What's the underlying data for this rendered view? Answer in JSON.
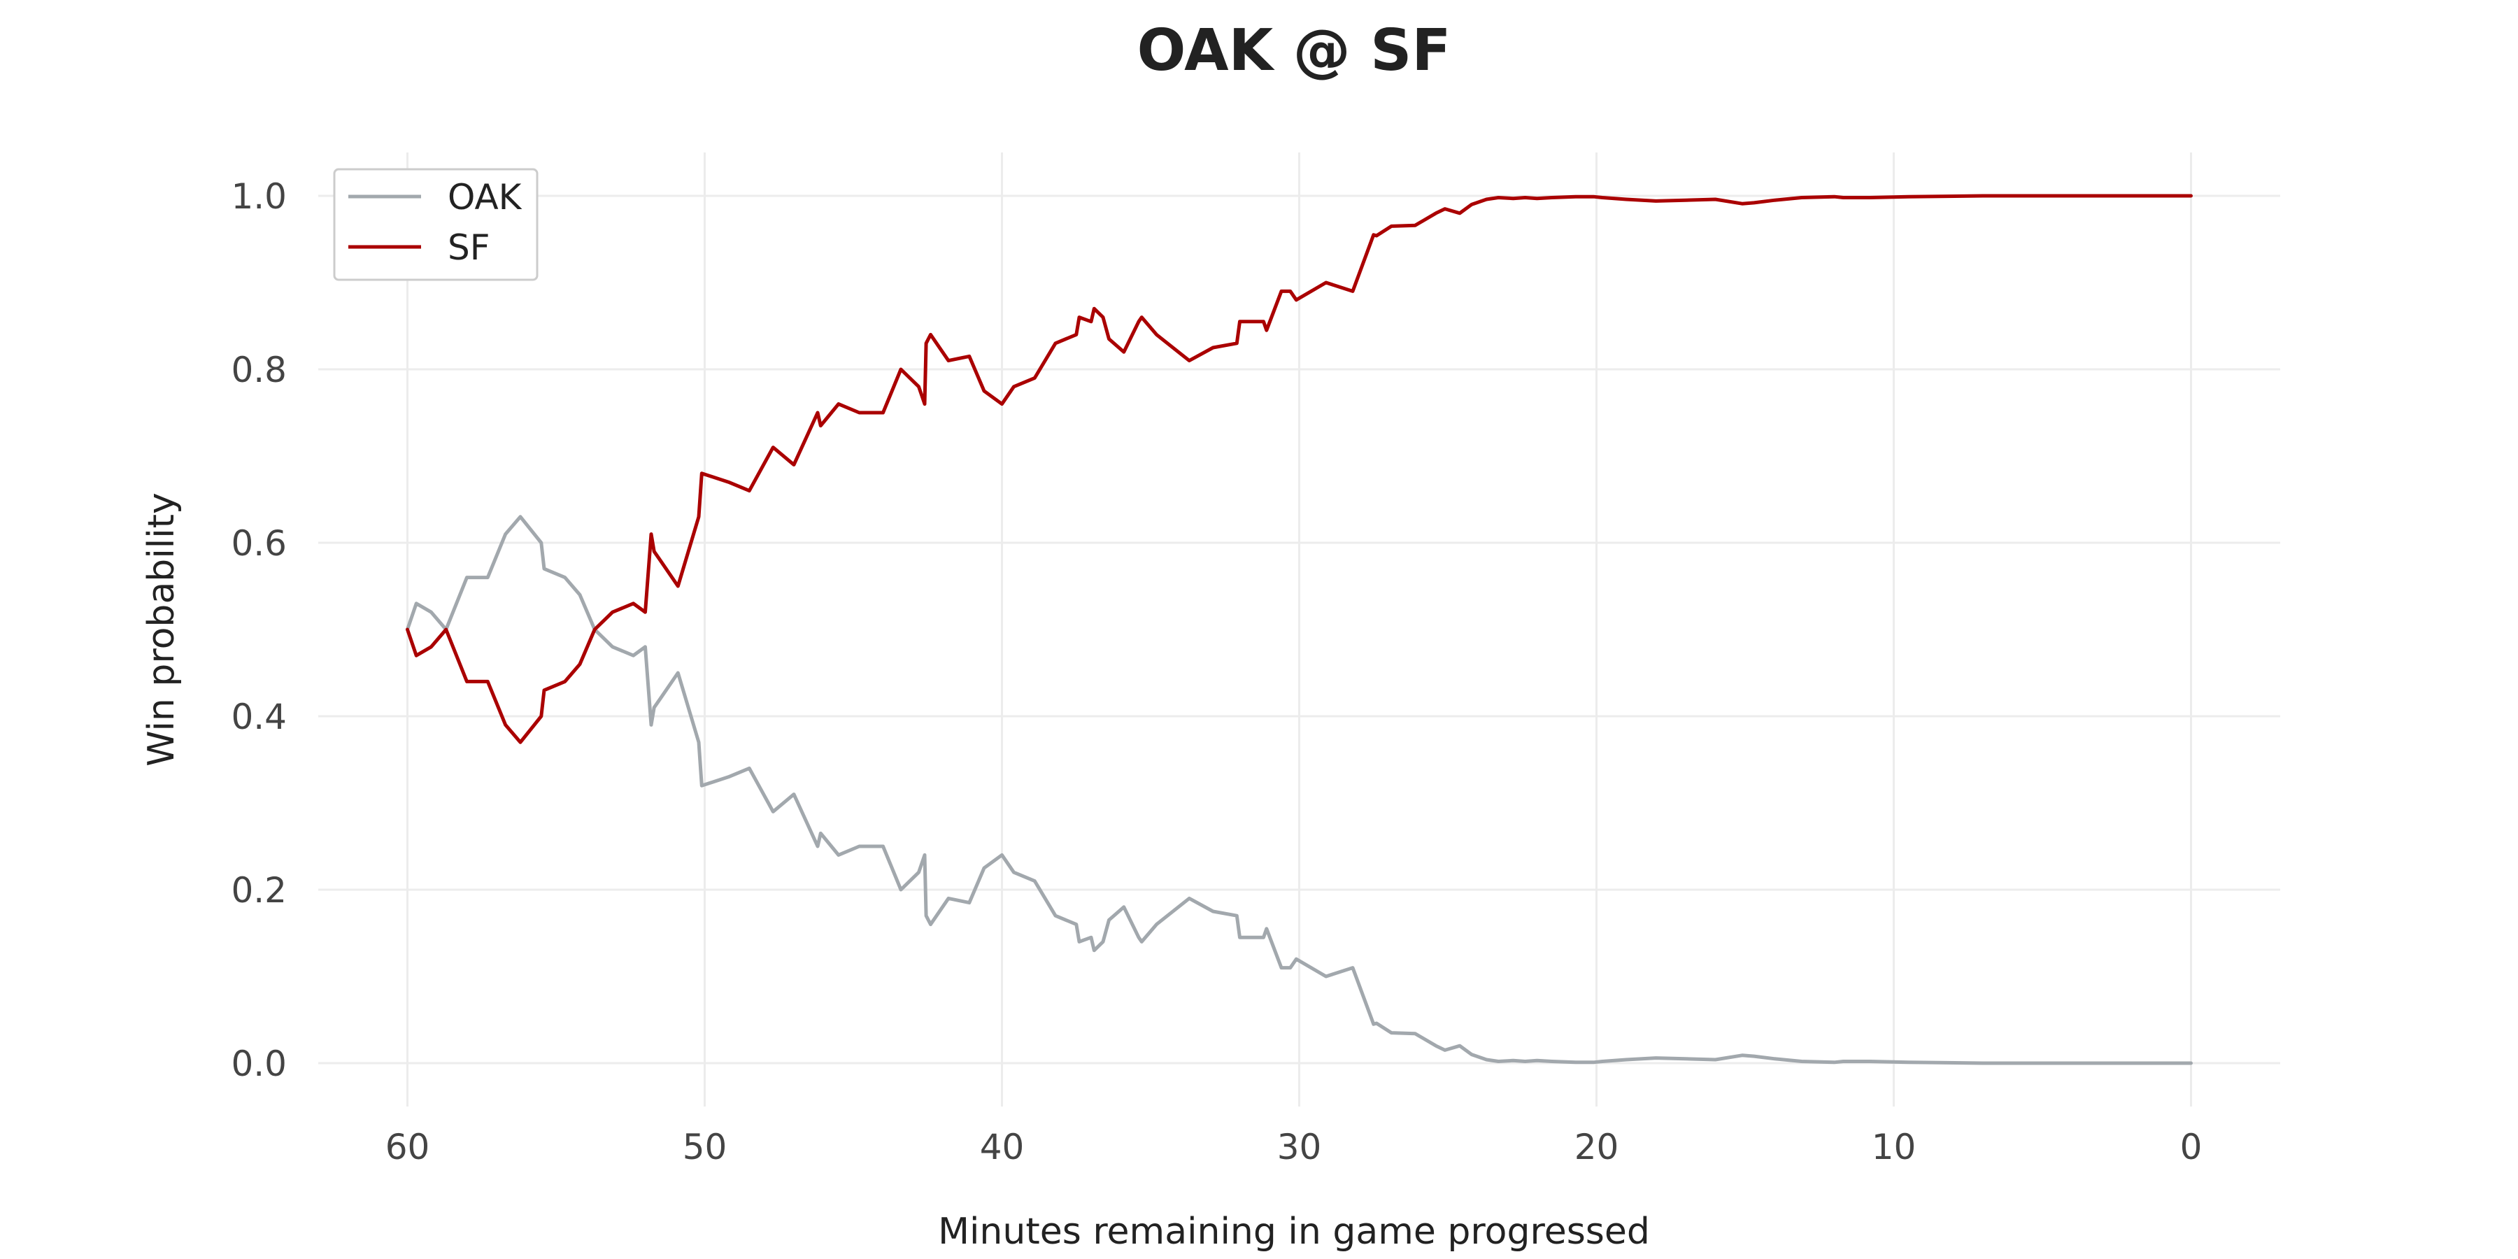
{
  "chart_data": {
    "type": "line",
    "title": "OAK @ SF",
    "xlabel": "Minutes remaining in game progressed",
    "ylabel": "Win probability",
    "xlim": [
      63,
      -3
    ],
    "ylim": [
      -0.05,
      1.05
    ],
    "x_axis_reversed": true,
    "xticks": [
      60,
      50,
      40,
      30,
      20,
      10,
      0
    ],
    "xtick_labels": [
      "60",
      "50",
      "40",
      "30",
      "20",
      "10",
      "0"
    ],
    "yticks": [
      0.0,
      0.2,
      0.4,
      0.6,
      0.8,
      1.0
    ],
    "ytick_labels": [
      "0.0",
      "0.2",
      "0.4",
      "0.6",
      "0.8",
      "1.0"
    ],
    "grid": true,
    "legend_position": "top-left",
    "colors": {
      "OAK": "#a2a8ad",
      "SF": "#aa0000"
    },
    "series": [
      {
        "name": "OAK",
        "x": [
          60,
          59.7,
          59.2,
          58.7,
          58.0,
          57.3,
          56.7,
          56.2,
          55.5,
          55.4,
          54.7,
          54.2,
          53.7,
          53.1,
          52.4,
          52.0,
          51.8,
          51.7,
          51.5,
          50.9,
          50.2,
          50.1,
          49.2,
          48.5,
          47.7,
          47.0,
          46.2,
          46.1,
          45.5,
          44.8,
          44.0,
          43.4,
          42.8,
          42.6,
          42.55,
          42.4,
          41.8,
          41.1,
          40.6,
          40.0,
          39.6,
          38.9,
          38.2,
          37.5,
          37.4,
          37.0,
          36.9,
          36.6,
          36.4,
          35.9,
          35.4,
          35.3,
          34.8,
          33.7,
          32.9,
          32.1,
          32.0,
          31.2,
          31.1,
          30.6,
          30.3,
          30.1,
          29.1,
          28.2,
          27.5,
          27.4,
          26.9,
          26.1,
          25.4,
          25.1,
          24.6,
          24.2,
          23.7,
          23.3,
          22.8,
          22.4,
          22.0,
          21.5,
          20.7,
          20.1,
          19.8,
          19.0,
          18.0,
          17.0,
          16.0,
          15.1,
          14.7,
          14.0,
          13.1,
          12.0,
          11.7,
          10.8,
          9.5,
          7.0,
          4.5,
          2.0,
          0
        ],
        "y": [
          0.5,
          0.53,
          0.52,
          0.5,
          0.56,
          0.56,
          0.61,
          0.63,
          0.6,
          0.57,
          0.56,
          0.54,
          0.5,
          0.48,
          0.47,
          0.48,
          0.39,
          0.41,
          0.42,
          0.45,
          0.37,
          0.32,
          0.33,
          0.34,
          0.29,
          0.31,
          0.25,
          0.265,
          0.24,
          0.25,
          0.25,
          0.2,
          0.22,
          0.24,
          0.17,
          0.16,
          0.19,
          0.185,
          0.225,
          0.24,
          0.22,
          0.21,
          0.17,
          0.16,
          0.14,
          0.145,
          0.13,
          0.14,
          0.165,
          0.18,
          0.145,
          0.14,
          0.16,
          0.19,
          0.175,
          0.17,
          0.145,
          0.145,
          0.155,
          0.11,
          0.11,
          0.12,
          0.1,
          0.11,
          0.045,
          0.046,
          0.035,
          0.034,
          0.02,
          0.015,
          0.02,
          0.01,
          0.004,
          0.002,
          0.003,
          0.002,
          0.003,
          0.002,
          0.001,
          0.001,
          0.002,
          0.004,
          0.006,
          0.005,
          0.004,
          0.009,
          0.008,
          0.005,
          0.002,
          0.001,
          0.002,
          0.002,
          0.001,
          0.0,
          0.0,
          0.0,
          0.0
        ]
      },
      {
        "name": "SF",
        "x": [
          60,
          59.7,
          59.2,
          58.7,
          58.0,
          57.3,
          56.7,
          56.2,
          55.5,
          55.4,
          54.7,
          54.2,
          53.7,
          53.1,
          52.4,
          52.0,
          51.8,
          51.7,
          51.5,
          50.9,
          50.2,
          50.1,
          49.2,
          48.5,
          47.7,
          47.0,
          46.2,
          46.1,
          45.5,
          44.8,
          44.0,
          43.4,
          42.8,
          42.6,
          42.55,
          42.4,
          41.8,
          41.1,
          40.6,
          40.0,
          39.6,
          38.9,
          38.2,
          37.5,
          37.4,
          37.0,
          36.9,
          36.6,
          36.4,
          35.9,
          35.4,
          35.3,
          34.8,
          33.7,
          32.9,
          32.1,
          32.0,
          31.2,
          31.1,
          30.6,
          30.3,
          30.1,
          29.1,
          28.2,
          27.5,
          27.4,
          26.9,
          26.1,
          25.4,
          25.1,
          24.6,
          24.2,
          23.7,
          23.3,
          22.8,
          22.4,
          22.0,
          21.5,
          20.7,
          20.1,
          19.8,
          19.0,
          18.0,
          17.0,
          16.0,
          15.1,
          14.7,
          14.0,
          13.1,
          12.0,
          11.7,
          10.8,
          9.5,
          7.0,
          4.5,
          2.0,
          0
        ],
        "y": [
          0.5,
          0.47,
          0.48,
          0.5,
          0.44,
          0.44,
          0.39,
          0.37,
          0.4,
          0.43,
          0.44,
          0.46,
          0.5,
          0.52,
          0.53,
          0.52,
          0.61,
          0.59,
          0.58,
          0.55,
          0.63,
          0.68,
          0.67,
          0.66,
          0.71,
          0.69,
          0.75,
          0.735,
          0.76,
          0.75,
          0.75,
          0.8,
          0.78,
          0.76,
          0.83,
          0.84,
          0.81,
          0.815,
          0.775,
          0.76,
          0.78,
          0.79,
          0.83,
          0.84,
          0.86,
          0.855,
          0.87,
          0.86,
          0.835,
          0.82,
          0.855,
          0.86,
          0.84,
          0.81,
          0.825,
          0.83,
          0.855,
          0.855,
          0.845,
          0.89,
          0.89,
          0.88,
          0.9,
          0.89,
          0.955,
          0.954,
          0.965,
          0.966,
          0.98,
          0.985,
          0.98,
          0.99,
          0.996,
          0.998,
          0.997,
          0.998,
          0.997,
          0.998,
          0.999,
          0.999,
          0.998,
          0.996,
          0.994,
          0.995,
          0.996,
          0.991,
          0.992,
          0.995,
          0.998,
          0.999,
          0.998,
          0.998,
          0.999,
          1.0,
          1.0,
          1.0,
          1.0
        ]
      }
    ]
  }
}
